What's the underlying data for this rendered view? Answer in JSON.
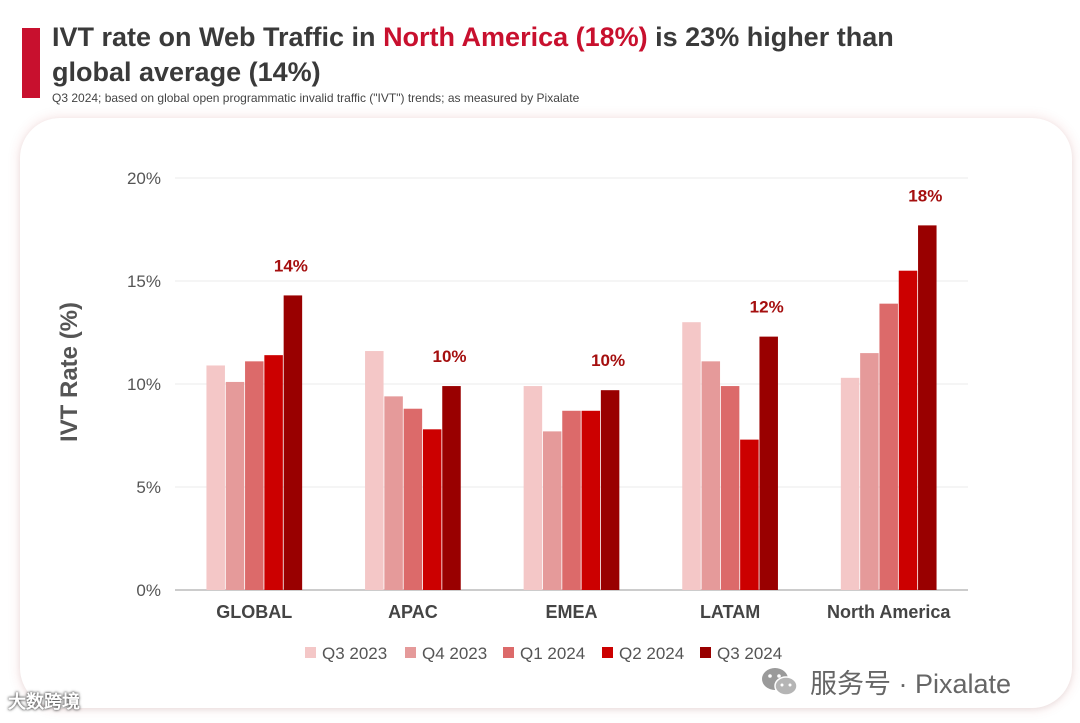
{
  "header": {
    "title_part1": "IVT rate on Web Traffic in ",
    "title_highlight": "North America (18%)",
    "title_part2": " is 23% higher than global average (14%)",
    "subtitle": "Q3 2024; based on global open programmatic invalid traffic (\"IVT\") trends; as measured by Pixalate"
  },
  "colors": {
    "accent": "#c8102e",
    "series": [
      "#f4c7c7",
      "#e59a9a",
      "#dc6a6a",
      "#cc0000",
      "#990000"
    ],
    "label": "#a50f0f"
  },
  "chart_data": {
    "type": "bar",
    "title": "",
    "xlabel": "",
    "ylabel": "IVT Rate (%)",
    "ylim": [
      0,
      20
    ],
    "yticks": [
      "0%",
      "5%",
      "10%",
      "15%",
      "20%"
    ],
    "categories": [
      "GLOBAL",
      "APAC",
      "EMEA",
      "LATAM",
      "North America"
    ],
    "series": [
      {
        "name": "Q3 2023",
        "values": [
          10.9,
          11.6,
          9.9,
          13.0,
          10.3
        ]
      },
      {
        "name": "Q4 2023",
        "values": [
          10.1,
          9.4,
          7.7,
          11.1,
          11.5
        ]
      },
      {
        "name": "Q1 2024",
        "values": [
          11.1,
          8.8,
          8.7,
          9.9,
          13.9
        ]
      },
      {
        "name": "Q2 2024",
        "values": [
          11.4,
          7.8,
          8.7,
          7.3,
          15.5
        ]
      },
      {
        "name": "Q3 2024",
        "values": [
          14.3,
          9.9,
          9.7,
          12.3,
          17.7
        ]
      }
    ],
    "annotations": [
      "14%",
      "10%",
      "10%",
      "12%",
      "18%"
    ],
    "legend": "bottom-center",
    "grid": true
  },
  "footer": {
    "left_watermark": "大数跨境",
    "right_watermark": "服务号 · Pixalate"
  }
}
